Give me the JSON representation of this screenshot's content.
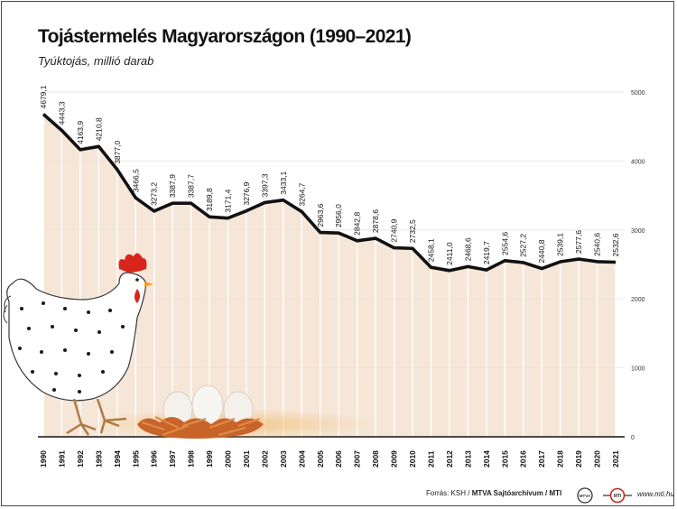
{
  "title": "Tojástermelés Magyarországon (1990–2021)",
  "subtitle": "Tyúktojás, millió darab",
  "footer": {
    "prefix": "Forrás: KSH / ",
    "bold": "MTVA Sajtóarchívum / MTI",
    "logo1_text": "MTVA",
    "logo2_text": "MTI",
    "site": "www.mti.hu"
  },
  "colors": {
    "area": "#f6e6d8",
    "line": "#111111",
    "grid": "#ffffff"
  },
  "chart_data": {
    "type": "area",
    "title": "Tojástermelés Magyarországon (1990–2021)",
    "subtitle": "Tyúktojás, millió darab",
    "categories": [
      "1990",
      "1991",
      "1992",
      "1993",
      "1994",
      "1995",
      "1996",
      "1997",
      "1998",
      "1999",
      "2000",
      "2001",
      "2002",
      "2003",
      "2004",
      "2005",
      "2006",
      "2007",
      "2008",
      "2009",
      "2010",
      "2011",
      "2012",
      "2013",
      "2014",
      "2015",
      "2016",
      "2017",
      "2018",
      "2019",
      "2020",
      "2021"
    ],
    "values": [
      4679.1,
      4443.3,
      4163.9,
      4210.8,
      3877.0,
      3466.5,
      3273.2,
      3387.9,
      3387.7,
      3189.8,
      3171.4,
      3276.9,
      3397.3,
      3433.1,
      3264.7,
      2963.6,
      2956.0,
      2842.8,
      2878.6,
      2740.9,
      2732.5,
      2458.1,
      2411.0,
      2468.6,
      2419.7,
      2554.6,
      2527.2,
      2440.8,
      2539.1,
      2577.6,
      2540.6,
      2532.6
    ],
    "labels": [
      "4679,1",
      "4443,3",
      "4163,9",
      "4210,8",
      "3877,0",
      "3466,5",
      "3273,2",
      "3387,9",
      "3387,7",
      "3189,8",
      "3171,4",
      "3276,9",
      "3397,3",
      "3433,1",
      "3264,7",
      "2963,6",
      "2956,0",
      "2842,8",
      "2878,6",
      "2740,9",
      "2732,5",
      "2458,1",
      "2411,0",
      "2468,6",
      "2419,7",
      "2554,6",
      "2527,2",
      "2440,8",
      "2539,1",
      "2577,6",
      "2540,6",
      "2532,6"
    ],
    "yticks": [
      0,
      1000,
      2000,
      3000,
      4000,
      5000
    ],
    "ylim": [
      0,
      5000
    ],
    "yaxis_position": "right",
    "grid": true
  }
}
